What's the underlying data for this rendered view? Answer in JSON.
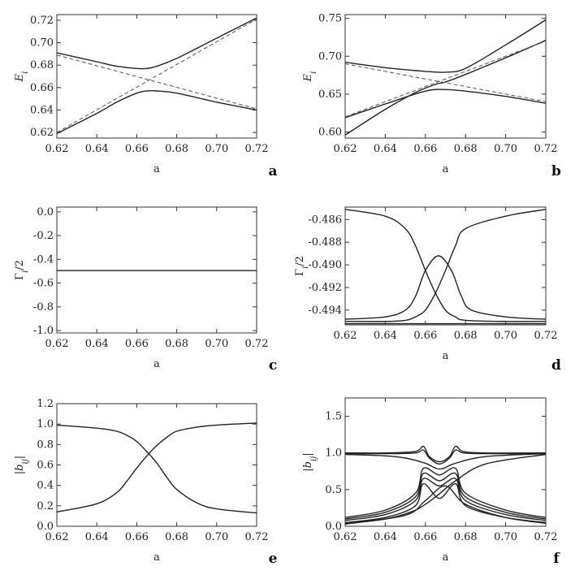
{
  "colors": {
    "curve": "#222222",
    "dashed": "#555555",
    "frame": "#333333",
    "background": "#ffffff"
  },
  "chart_data": [
    {
      "panel": "a",
      "type": "line",
      "xlabel": "a",
      "ylabel": "E_i",
      "xlim": [
        0.62,
        0.72
      ],
      "ylim": [
        0.615,
        0.725
      ],
      "xticks": [
        0.62,
        0.64,
        0.66,
        0.68,
        0.7,
        0.72
      ],
      "xtick_labels": [
        "0.62",
        "0.64",
        "0.66",
        "0.68",
        "0.70",
        "0.72"
      ],
      "yticks": [
        0.62,
        0.64,
        0.66,
        0.68,
        0.7,
        0.72
      ],
      "ytick_labels": [
        "0.62",
        "0.64",
        "0.66",
        "0.68",
        "0.70",
        "0.72"
      ],
      "series": [
        {
          "style": "solid",
          "x": [
            0.62,
            0.64,
            0.65,
            0.66,
            0.665,
            0.67,
            0.68,
            0.7,
            0.72
          ],
          "y": [
            0.691,
            0.683,
            0.679,
            0.677,
            0.677,
            0.679,
            0.686,
            0.704,
            0.722
          ]
        },
        {
          "style": "solid",
          "x": [
            0.62,
            0.64,
            0.65,
            0.66,
            0.665,
            0.67,
            0.68,
            0.7,
            0.72
          ],
          "y": [
            0.619,
            0.637,
            0.647,
            0.655,
            0.657,
            0.657,
            0.655,
            0.647,
            0.64
          ]
        },
        {
          "style": "dashed",
          "x": [
            0.62,
            0.72
          ],
          "y": [
            0.689,
            0.641
          ]
        },
        {
          "style": "dashed",
          "x": [
            0.62,
            0.72
          ],
          "y": [
            0.62,
            0.721
          ]
        }
      ]
    },
    {
      "panel": "b",
      "type": "line",
      "xlabel": "a",
      "ylabel": "E_i",
      "xlim": [
        0.62,
        0.72
      ],
      "ylim": [
        0.592,
        0.755
      ],
      "xticks": [
        0.62,
        0.64,
        0.66,
        0.68,
        0.7,
        0.72
      ],
      "xtick_labels": [
        "0.62",
        "0.64",
        "0.66",
        "0.68",
        "0.70",
        "0.72"
      ],
      "yticks": [
        0.6,
        0.65,
        0.7,
        0.75
      ],
      "ytick_labels": [
        "0.60",
        "0.65",
        "0.70",
        "0.75"
      ],
      "series": [
        {
          "style": "solid",
          "x": [
            0.62,
            0.64,
            0.66,
            0.67,
            0.68,
            0.7,
            0.72
          ],
          "y": [
            0.692,
            0.685,
            0.68,
            0.679,
            0.684,
            0.715,
            0.748
          ]
        },
        {
          "style": "solid",
          "x": [
            0.62,
            0.64,
            0.655,
            0.665,
            0.67,
            0.68,
            0.7,
            0.72
          ],
          "y": [
            0.596,
            0.63,
            0.652,
            0.663,
            0.666,
            0.676,
            0.698,
            0.721
          ]
        },
        {
          "style": "solid",
          "x": [
            0.62,
            0.64,
            0.66,
            0.67,
            0.68,
            0.7,
            0.72
          ],
          "y": [
            0.619,
            0.637,
            0.654,
            0.656,
            0.654,
            0.647,
            0.638
          ]
        },
        {
          "style": "dashed",
          "x": [
            0.62,
            0.72
          ],
          "y": [
            0.69,
            0.64
          ]
        },
        {
          "style": "dashed",
          "x": [
            0.62,
            0.72
          ],
          "y": [
            0.62,
            0.72
          ]
        }
      ]
    },
    {
      "panel": "c",
      "type": "line",
      "xlabel": "a",
      "ylabel": "Γ_i/2",
      "xlim": [
        0.62,
        0.72
      ],
      "ylim": [
        -1.02,
        0.04
      ],
      "xticks": [
        0.62,
        0.64,
        0.66,
        0.68,
        0.7,
        0.72
      ],
      "xtick_labels": [
        "0.62",
        "0.64",
        "0.66",
        "0.68",
        "0.70",
        "0.72"
      ],
      "yticks": [
        0.0,
        -0.2,
        -0.4,
        -0.6,
        -0.8,
        -1.0
      ],
      "ytick_labels": [
        "0.0",
        "-0.2",
        "-0.4",
        "-0.6",
        "-0.8",
        "-1.0"
      ],
      "series": [
        {
          "style": "solid",
          "x": [
            0.62,
            0.72
          ],
          "y": [
            -0.495,
            -0.495
          ]
        }
      ]
    },
    {
      "panel": "d",
      "type": "line",
      "xlabel": "a",
      "ylabel": "Γ_i/2",
      "xlim": [
        0.62,
        0.72
      ],
      "ylim": [
        -0.4953,
        -0.4849
      ],
      "xticks": [
        0.62,
        0.64,
        0.66,
        0.68,
        0.7,
        0.72
      ],
      "xtick_labels": [
        "0.62",
        "0.64",
        "0.66",
        "0.68",
        "0.70",
        "0.72"
      ],
      "yticks": [
        -0.486,
        -0.488,
        -0.49,
        -0.492,
        -0.494
      ],
      "ytick_labels": [
        "-0.486",
        "-0.488",
        "-0.490",
        "-0.492",
        "-0.494"
      ],
      "series": [
        {
          "style": "solid",
          "x": [
            0.62,
            0.64,
            0.65,
            0.655,
            0.66,
            0.665,
            0.67,
            0.675,
            0.68,
            0.7,
            0.72
          ],
          "y": [
            -0.4851,
            -0.4857,
            -0.4868,
            -0.4883,
            -0.4905,
            -0.4925,
            -0.494,
            -0.4946,
            -0.4949,
            -0.495,
            -0.495
          ]
        },
        {
          "style": "solid",
          "x": [
            0.62,
            0.64,
            0.65,
            0.655,
            0.66,
            0.665,
            0.67,
            0.675,
            0.68,
            0.7,
            0.72
          ],
          "y": [
            -0.495,
            -0.495,
            -0.4949,
            -0.4946,
            -0.494,
            -0.4925,
            -0.4905,
            -0.4883,
            -0.4868,
            -0.4857,
            -0.4851
          ]
        },
        {
          "style": "solid",
          "x": [
            0.62,
            0.64,
            0.65,
            0.655,
            0.66,
            0.6665,
            0.673,
            0.678,
            0.683,
            0.7,
            0.72
          ],
          "y": [
            -0.4948,
            -0.4946,
            -0.494,
            -0.4928,
            -0.4905,
            -0.4892,
            -0.4905,
            -0.4928,
            -0.494,
            -0.4946,
            -0.4948
          ]
        },
        {
          "style": "solid",
          "x": [
            0.62,
            0.72
          ],
          "y": [
            -0.4952,
            -0.4952
          ]
        }
      ]
    },
    {
      "panel": "e",
      "type": "line",
      "xlabel": "a",
      "ylabel": "|b_ij|",
      "xlim": [
        0.62,
        0.72
      ],
      "ylim": [
        0.0,
        1.2
      ],
      "xticks": [
        0.62,
        0.64,
        0.66,
        0.68,
        0.7,
        0.72
      ],
      "xtick_labels": [
        "0.62",
        "0.64",
        "0.66",
        "0.68",
        "0.70",
        "0.72"
      ],
      "yticks": [
        0.0,
        0.2,
        0.4,
        0.6,
        0.8,
        1.0,
        1.2
      ],
      "ytick_labels": [
        "0.0",
        "0.2",
        "0.4",
        "0.6",
        "0.8",
        "1.0",
        "1.2"
      ],
      "series": [
        {
          "style": "solid",
          "x": [
            0.62,
            0.64,
            0.65,
            0.655,
            0.66,
            0.666,
            0.67,
            0.675,
            0.68,
            0.69,
            0.7,
            0.72
          ],
          "y": [
            0.99,
            0.96,
            0.93,
            0.89,
            0.83,
            0.71,
            0.62,
            0.48,
            0.36,
            0.23,
            0.17,
            0.13
          ]
        },
        {
          "style": "solid",
          "x": [
            0.62,
            0.64,
            0.65,
            0.655,
            0.66,
            0.666,
            0.67,
            0.675,
            0.68,
            0.69,
            0.7,
            0.72
          ],
          "y": [
            0.14,
            0.22,
            0.33,
            0.44,
            0.57,
            0.71,
            0.79,
            0.87,
            0.93,
            0.97,
            0.99,
            1.01
          ]
        }
      ]
    },
    {
      "panel": "f",
      "type": "line",
      "xlabel": "a",
      "ylabel": "|b_ij|",
      "xlim": [
        0.62,
        0.72
      ],
      "ylim": [
        0.0,
        1.75
      ],
      "xticks": [
        0.62,
        0.64,
        0.66,
        0.68,
        0.7,
        0.72
      ],
      "xtick_labels": [
        "0.62",
        "0.64",
        "0.66",
        "0.68",
        "0.70",
        "0.72"
      ],
      "yticks": [
        0.0,
        0.5,
        1.0,
        1.5
      ],
      "ytick_labels": [
        "0.0",
        "0.5",
        "1.0",
        "1.5"
      ],
      "series": [
        {
          "style": "solid",
          "x": [
            0.62,
            0.64,
            0.655,
            0.659,
            0.662,
            0.667,
            0.672,
            0.675,
            0.679,
            0.69,
            0.72
          ],
          "y": [
            1.0,
            1.0,
            1.02,
            1.09,
            0.95,
            0.88,
            0.95,
            1.09,
            1.02,
            1.0,
            1.0
          ]
        },
        {
          "style": "solid",
          "x": [
            0.62,
            0.64,
            0.655,
            0.659,
            0.662,
            0.667,
            0.672,
            0.675,
            0.679,
            0.69,
            0.72
          ],
          "y": [
            0.99,
            0.99,
            1.0,
            1.04,
            0.93,
            0.85,
            0.93,
            1.04,
            1.0,
            0.99,
            0.99
          ]
        },
        {
          "style": "solid",
          "x": [
            0.62,
            0.64,
            0.65,
            0.66,
            0.667,
            0.675,
            0.69,
            0.72
          ],
          "y": [
            0.98,
            0.96,
            0.93,
            0.86,
            0.78,
            0.86,
            0.95,
            0.99
          ]
        },
        {
          "style": "solid",
          "x": [
            0.62,
            0.64,
            0.655,
            0.659,
            0.667,
            0.675,
            0.68,
            0.7,
            0.72
          ],
          "y": [
            0.12,
            0.22,
            0.45,
            0.79,
            0.7,
            0.79,
            0.45,
            0.22,
            0.12
          ]
        },
        {
          "style": "solid",
          "x": [
            0.62,
            0.64,
            0.655,
            0.659,
            0.667,
            0.675,
            0.68,
            0.7,
            0.72
          ],
          "y": [
            0.1,
            0.19,
            0.4,
            0.72,
            0.62,
            0.72,
            0.4,
            0.19,
            0.1
          ]
        },
        {
          "style": "solid",
          "x": [
            0.62,
            0.64,
            0.655,
            0.659,
            0.667,
            0.675,
            0.68,
            0.7,
            0.72
          ],
          "y": [
            0.08,
            0.16,
            0.35,
            0.65,
            0.55,
            0.65,
            0.35,
            0.16,
            0.08
          ]
        },
        {
          "style": "solid",
          "x": [
            0.62,
            0.64,
            0.655,
            0.659,
            0.667,
            0.675,
            0.68,
            0.7,
            0.72
          ],
          "y": [
            0.05,
            0.12,
            0.28,
            0.58,
            0.38,
            0.58,
            0.28,
            0.12,
            0.05
          ]
        },
        {
          "style": "solid",
          "x": [
            0.62,
            0.64,
            0.655,
            0.665,
            0.675,
            0.69,
            0.72
          ],
          "y": [
            0.04,
            0.1,
            0.22,
            0.4,
            0.62,
            0.85,
            0.98
          ]
        },
        {
          "style": "solid",
          "x": [
            0.62,
            0.65,
            0.66,
            0.67,
            0.68,
            0.7,
            0.72
          ],
          "y": [
            0.03,
            0.15,
            0.35,
            0.55,
            0.3,
            0.12,
            0.04
          ]
        }
      ]
    }
  ]
}
